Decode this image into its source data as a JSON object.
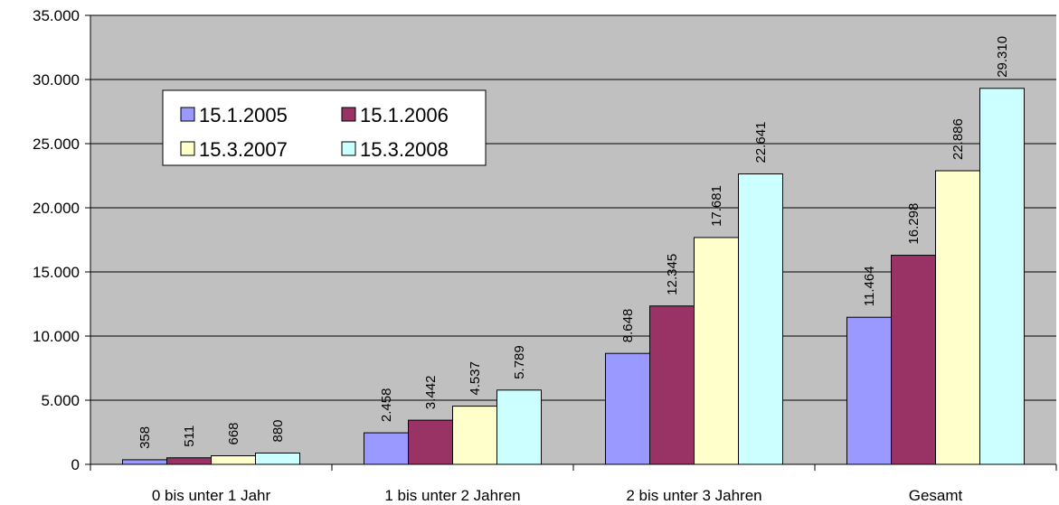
{
  "chart_data": {
    "type": "bar",
    "categories": [
      "0 bis unter 1 Jahr",
      "1 bis unter 2 Jahren",
      "2 bis unter 3 Jahren",
      "Gesamt"
    ],
    "series": [
      {
        "name": "15.1.2005",
        "color": "#9999ff",
        "values": [
          358,
          2458,
          8648,
          11464
        ],
        "value_labels": [
          "358",
          "2.458",
          "8.648",
          "11.464"
        ]
      },
      {
        "name": "15.1.2006",
        "color": "#993366",
        "values": [
          511,
          3442,
          12345,
          16298
        ],
        "value_labels": [
          "511",
          "3.442",
          "12.345",
          "16.298"
        ]
      },
      {
        "name": "15.3.2007",
        "color": "#ffffcc",
        "values": [
          668,
          4537,
          17681,
          22886
        ],
        "value_labels": [
          "668",
          "4.537",
          "17.681",
          "22.886"
        ]
      },
      {
        "name": "15.3.2008",
        "color": "#ccffff",
        "values": [
          880,
          5789,
          22641,
          29310
        ],
        "value_labels": [
          "880",
          "5.789",
          "22.641",
          "29.310"
        ]
      }
    ],
    "ylim": [
      0,
      35000
    ],
    "yticks": [
      0,
      {
        "value": 5000,
        "label": "5.000"
      },
      {
        "value": 10000,
        "label": "10.000"
      },
      {
        "value": 15000,
        "label": "15.000"
      },
      {
        "value": 20000,
        "label": "20.000"
      },
      {
        "value": 25000,
        "label": "25.000"
      },
      {
        "value": 30000,
        "label": "30.000"
      },
      {
        "value": 35000,
        "label": "35.000"
      }
    ],
    "grid": true,
    "legend": "upper left"
  }
}
